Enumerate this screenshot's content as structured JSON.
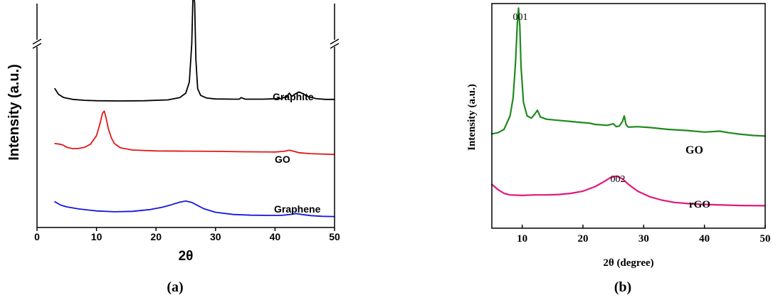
{
  "chart_data": [
    {
      "panel_label": "(a)",
      "type": "line",
      "xlabel": "2θ",
      "ylabel": "Intensity (a.u.)",
      "xlim": [
        0,
        50
      ],
      "x_ticks": [
        "0",
        "10",
        "20",
        "30",
        "40",
        "50"
      ],
      "y_axis_break": true,
      "series": [
        {
          "name": "Graphite",
          "color": "#000000",
          "x": [
            3,
            3.6,
            4.5,
            6,
            8,
            10,
            14,
            18,
            22,
            24,
            25,
            25.6,
            26,
            26.2,
            26.3,
            26.5,
            26.7,
            27,
            27.5,
            28.5,
            30,
            33,
            34,
            34.3,
            35,
            38,
            41,
            42,
            42.4,
            42.8,
            43.3,
            44,
            44.5,
            45.5,
            47,
            48.5,
            50
          ],
          "values": [
            0.62,
            0.595,
            0.58,
            0.572,
            0.568,
            0.566,
            0.565,
            0.566,
            0.57,
            0.58,
            0.6,
            0.65,
            0.82,
            1.02,
            1.06,
            1.0,
            0.75,
            0.62,
            0.59,
            0.578,
            0.574,
            0.573,
            0.573,
            0.58,
            0.573,
            0.573,
            0.576,
            0.585,
            0.6,
            0.585,
            0.595,
            0.605,
            0.6,
            0.585,
            0.575,
            0.572,
            0.572
          ]
        },
        {
          "name": "GO",
          "color": "#e01818",
          "x": [
            3,
            3.8,
            4.4,
            5,
            6,
            7,
            8,
            9,
            10,
            10.6,
            11,
            11.3,
            11.6,
            12,
            12.5,
            13,
            14,
            16,
            20,
            25,
            30,
            35,
            40,
            41.5,
            42.4,
            43.2,
            44,
            46,
            50
          ],
          "values": [
            0.375,
            0.372,
            0.368,
            0.358,
            0.352,
            0.353,
            0.358,
            0.372,
            0.41,
            0.465,
            0.51,
            0.52,
            0.49,
            0.44,
            0.4,
            0.375,
            0.356,
            0.346,
            0.342,
            0.341,
            0.34,
            0.338,
            0.337,
            0.34,
            0.345,
            0.34,
            0.334,
            0.33,
            0.326
          ]
        },
        {
          "name": "Graphene",
          "color": "#1515e0",
          "x": [
            3,
            4,
            5,
            7,
            10,
            13,
            16,
            19,
            21,
            22.5,
            24,
            25,
            26,
            27,
            28,
            30,
            33,
            36,
            39,
            41,
            42.5,
            43.5,
            44.5,
            46,
            48,
            50
          ],
          "values": [
            0.115,
            0.1,
            0.092,
            0.083,
            0.074,
            0.07,
            0.072,
            0.08,
            0.09,
            0.101,
            0.113,
            0.118,
            0.112,
            0.098,
            0.084,
            0.068,
            0.058,
            0.055,
            0.054,
            0.054,
            0.058,
            0.062,
            0.058,
            0.053,
            0.05,
            0.049
          ]
        }
      ]
    },
    {
      "panel_label": "(b)",
      "type": "line",
      "xlabel": "2θ (degree)",
      "ylabel": "Intensity (a.u.)",
      "xlim": [
        5,
        50
      ],
      "x_ticks": [
        "10",
        "20",
        "30",
        "40",
        "50"
      ],
      "annotations": [
        "001",
        "002"
      ],
      "series": [
        {
          "name": "GO",
          "color": "#1f8a1f",
          "x": [
            5,
            6,
            7,
            8,
            8.5,
            8.9,
            9.2,
            9.4,
            9.6,
            9.8,
            10.2,
            10.8,
            11.5,
            12,
            12.5,
            13,
            14,
            16,
            18,
            20,
            21,
            22,
            24,
            25,
            25.5,
            26,
            26.5,
            26.8,
            27.1,
            27.5,
            29,
            31,
            34,
            37,
            40,
            42.5,
            44,
            46,
            48,
            50
          ],
          "values": [
            0.42,
            0.425,
            0.44,
            0.5,
            0.58,
            0.74,
            0.91,
            0.98,
            0.9,
            0.72,
            0.56,
            0.5,
            0.49,
            0.505,
            0.525,
            0.495,
            0.485,
            0.48,
            0.475,
            0.47,
            0.468,
            0.462,
            0.458,
            0.465,
            0.452,
            0.455,
            0.475,
            0.5,
            0.46,
            0.45,
            0.452,
            0.448,
            0.44,
            0.435,
            0.428,
            0.432,
            0.425,
            0.418,
            0.413,
            0.41
          ]
        },
        {
          "name": "rGO",
          "color": "#e0197f",
          "x": [
            5,
            6,
            7,
            8,
            10,
            12,
            14,
            16,
            18,
            20,
            22,
            23.5,
            24.5,
            25.5,
            26.5,
            27.5,
            29,
            31,
            33,
            35,
            38,
            42,
            46,
            50
          ],
          "values": [
            0.195,
            0.172,
            0.155,
            0.148,
            0.146,
            0.148,
            0.148,
            0.15,
            0.155,
            0.165,
            0.185,
            0.208,
            0.225,
            0.232,
            0.22,
            0.195,
            0.165,
            0.14,
            0.125,
            0.115,
            0.108,
            0.104,
            0.101,
            0.1
          ]
        }
      ]
    }
  ]
}
